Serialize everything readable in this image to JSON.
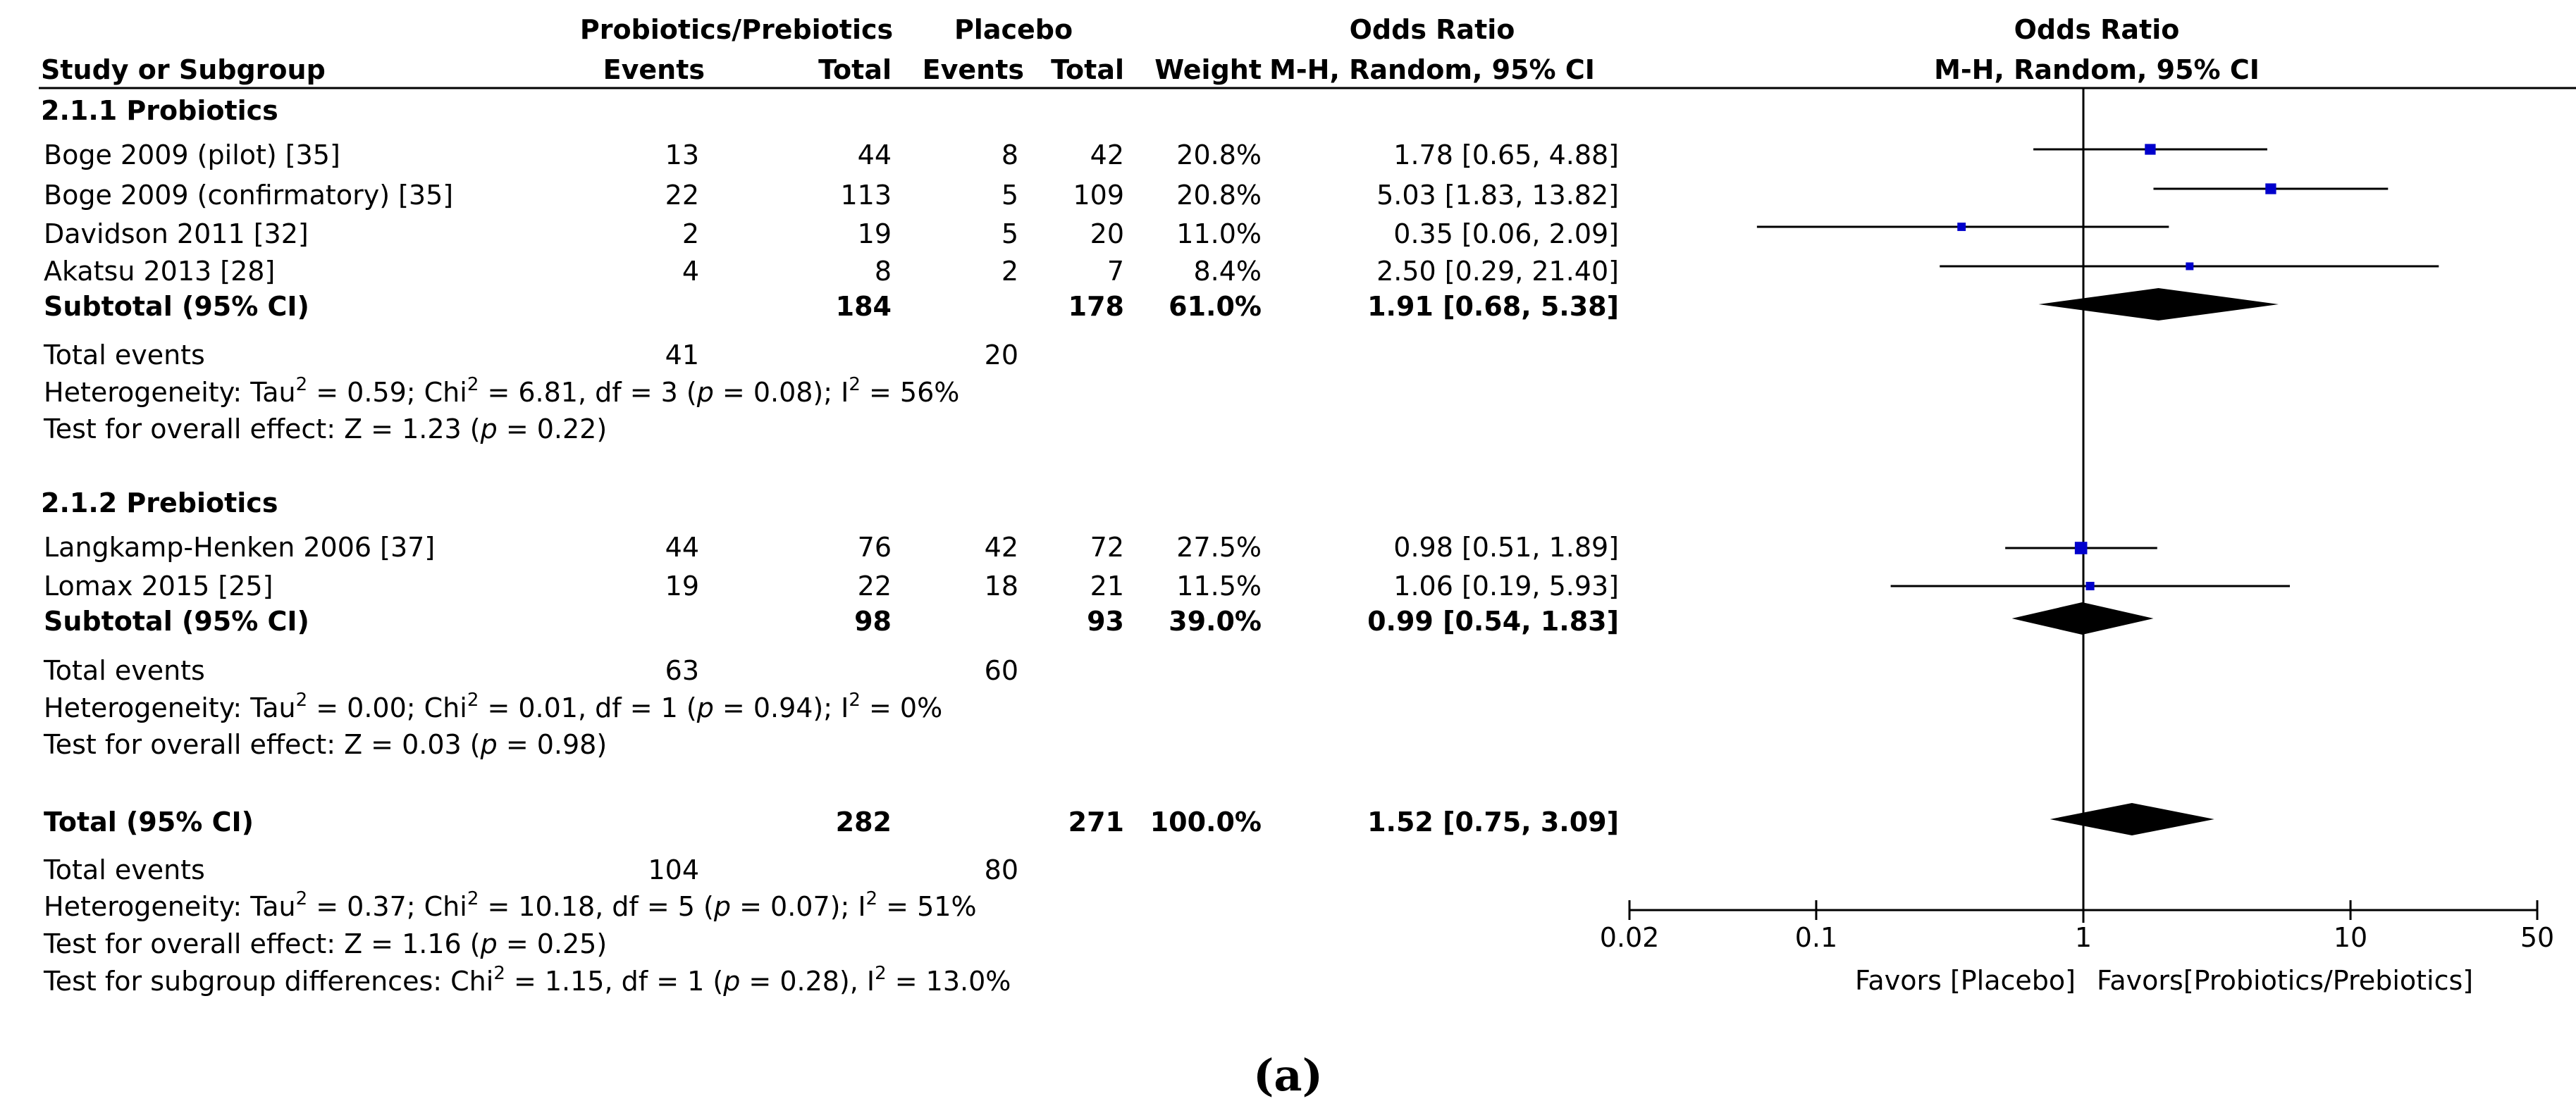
{
  "header": {
    "group1": "Probiotics/Prebiotics",
    "group2": "Placebo",
    "or_table": "Odds Ratio",
    "or_plot": "Odds Ratio",
    "study_col": "Study or Subgroup",
    "events1": "Events",
    "total1": "Total",
    "events2": "Events",
    "total2": "Total",
    "weight": "Weight",
    "method_table": "M-H, Random, 95% CI",
    "method_plot": "M-H, Random, 95% CI"
  },
  "colors": {
    "marker": "#0000cc",
    "line": "#000000",
    "diamond": "#000000"
  },
  "subgroups": [
    {
      "title": "2.1.1 Probiotics",
      "studies": [
        {
          "name": "Boge 2009 (pilot) [35]",
          "e1": "13",
          "t1": "44",
          "e2": "8",
          "t2": "42",
          "weight": "20.8%",
          "ci_text": "1.78 [0.65, 4.88]"
        },
        {
          "name": "Boge 2009 (confirmatory) [35]",
          "e1": "22",
          "t1": "113",
          "e2": "5",
          "t2": "109",
          "weight": "20.8%",
          "ci_text": "5.03 [1.83, 13.82]"
        },
        {
          "name": "Davidson 2011 [32]",
          "e1": "2",
          "t1": "19",
          "e2": "5",
          "t2": "20",
          "weight": "11.0%",
          "ci_text": "0.35 [0.06, 2.09]"
        },
        {
          "name": "Akatsu 2013 [28]",
          "e1": "4",
          "t1": "8",
          "e2": "2",
          "t2": "7",
          "weight": "8.4%",
          "ci_text": "2.50 [0.29, 21.40]"
        }
      ],
      "subtotal": {
        "label": "Subtotal (95% CI)",
        "t1": "184",
        "t2": "178",
        "weight": "61.0%",
        "ci_text": "1.91 [0.68, 5.38]"
      },
      "total_events": {
        "label": "Total events",
        "e1": "41",
        "e2": "20"
      },
      "heterogeneity": {
        "a": "Heterogeneity: Tau",
        "b": " = 0.59; Chi",
        "c": " = 6.81, df = 3 (",
        "p": "p",
        "d": " = 0.08); I",
        "e": " = 56%"
      },
      "overall": {
        "a": "Test for overall effect: Z = 1.23 (",
        "p": "p",
        "b": " = 0.22)"
      }
    },
    {
      "title": "2.1.2 Prebiotics",
      "studies": [
        {
          "name": "Langkamp-Henken  2006 [37]",
          "e1": "44",
          "t1": "76",
          "e2": "42",
          "t2": "72",
          "weight": "27.5%",
          "ci_text": "0.98 [0.51, 1.89]"
        },
        {
          "name": "Lomax 2015 [25]",
          "e1": "19",
          "t1": "22",
          "e2": "18",
          "t2": "21",
          "weight": "11.5%",
          "ci_text": "1.06 [0.19, 5.93]"
        }
      ],
      "subtotal": {
        "label": "Subtotal (95% CI)",
        "t1": "98",
        "t2": "93",
        "weight": "39.0%",
        "ci_text": "0.99 [0.54, 1.83]"
      },
      "total_events": {
        "label": "Total events",
        "e1": "63",
        "e2": "60"
      },
      "heterogeneity": {
        "a": "Heterogeneity: Tau",
        "b": " = 0.00; Chi",
        "c": " = 0.01, df = 1 (",
        "p": "p",
        "d": " = 0.94); I",
        "e": " = 0%"
      },
      "overall": {
        "a": "Test for overall effect: Z = 0.03 (",
        "p": "p",
        "b": " = 0.98)"
      }
    }
  ],
  "total": {
    "label": "Total (95% CI)",
    "t1": "282",
    "t2": "271",
    "weight": "100.0%",
    "ci_text": "1.52 [0.75, 3.09]",
    "events_label": "Total events",
    "e1": "104",
    "e2": "80",
    "heterogeneity": {
      "a": "Heterogeneity: Tau",
      "b": " = 0.37; Chi",
      "c": " = 10.18, df = 5 (",
      "p": "p",
      "d": " = 0.07); I",
      "e": " = 51%"
    },
    "overall": {
      "a": "Test for overall effect: Z = 1.16 (",
      "p": "p",
      "b": " = 0.25)"
    },
    "subgroup_diff": {
      "a": "Test for subgroup differences: Chi",
      "b": " = 1.15, df = 1 (",
      "p": "p",
      "c": " = 0.28), I",
      "d": " = 13.0%"
    }
  },
  "sup2": "2",
  "axis_labels": {
    "favors_left": "Favors [Placebo]",
    "favors_right": "Favors[Probiotics/Prebiotics]"
  },
  "caption": "(a)",
  "chart_data": {
    "type": "forest",
    "title": "Odds Ratio M-H, Random, 95% CI",
    "xscale": "log",
    "xlim": [
      0.02,
      50
    ],
    "xticks": [
      0.02,
      0.1,
      1,
      10,
      50
    ],
    "xtick_labels": [
      "0.02",
      "0.1",
      "1",
      "10",
      "50"
    ],
    "reference_line": 1,
    "studies": [
      {
        "name": "Boge 2009 (pilot) [35]",
        "or": 1.78,
        "lo": 0.65,
        "hi": 4.88,
        "weight": 20.8
      },
      {
        "name": "Boge 2009 (confirmatory) [35]",
        "or": 5.03,
        "lo": 1.83,
        "hi": 13.82,
        "weight": 20.8
      },
      {
        "name": "Davidson 2011 [32]",
        "or": 0.35,
        "lo": 0.06,
        "hi": 2.09,
        "weight": 11.0
      },
      {
        "name": "Akatsu 2013 [28]",
        "or": 2.5,
        "lo": 0.29,
        "hi": 21.4,
        "weight": 8.4
      },
      {
        "name": "Langkamp-Henken  2006 [37]",
        "or": 0.98,
        "lo": 0.51,
        "hi": 1.89,
        "weight": 27.5
      },
      {
        "name": "Lomax 2015 [25]",
        "or": 1.06,
        "lo": 0.19,
        "hi": 5.93,
        "weight": 11.5
      }
    ],
    "pooled": [
      {
        "name": "Subtotal 2.1.1 Probiotics",
        "or": 1.91,
        "lo": 0.68,
        "hi": 5.38
      },
      {
        "name": "Subtotal 2.1.2 Prebiotics",
        "or": 0.99,
        "lo": 0.54,
        "hi": 1.83
      },
      {
        "name": "Total",
        "or": 1.52,
        "lo": 0.75,
        "hi": 3.09
      }
    ]
  }
}
